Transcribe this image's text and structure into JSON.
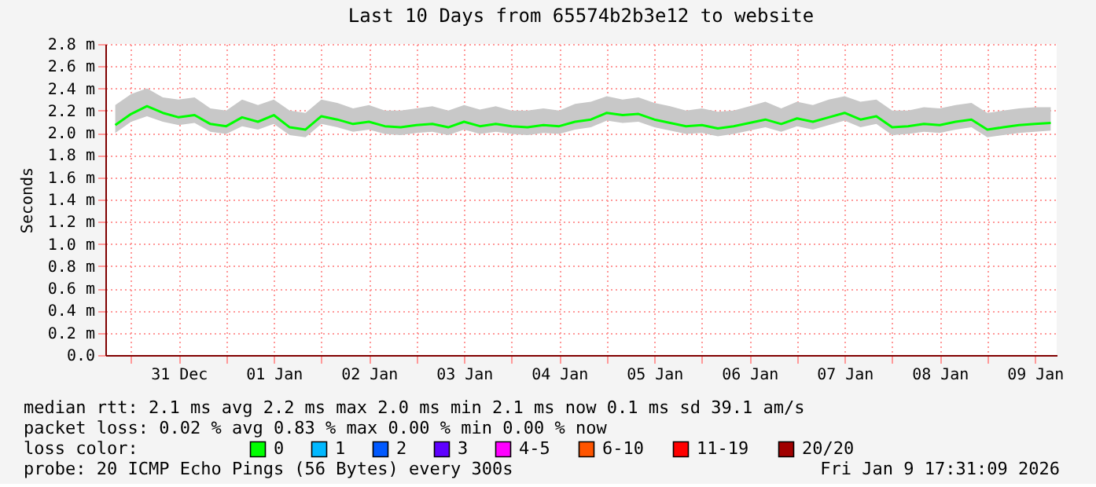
{
  "chart_data": {
    "type": "line",
    "title": "Last 10 Days from 65574b2b3e12 to website",
    "ylabel": "Seconds",
    "x": [
      "2025-12-30T20:00",
      "2025-12-31T00:00",
      "2025-12-31T04:00",
      "2025-12-31T08:00",
      "2025-12-31T12:00",
      "2025-12-31T16:00",
      "2025-12-31T20:00",
      "2026-01-01T00:00",
      "2026-01-01T04:00",
      "2026-01-01T08:00",
      "2026-01-01T12:00",
      "2026-01-01T16:00",
      "2026-01-01T20:00",
      "2026-01-02T00:00",
      "2026-01-02T04:00",
      "2026-01-02T08:00",
      "2026-01-02T12:00",
      "2026-01-02T16:00",
      "2026-01-02T20:00",
      "2026-01-03T00:00",
      "2026-01-03T04:00",
      "2026-01-03T08:00",
      "2026-01-03T12:00",
      "2026-01-03T16:00",
      "2026-01-03T20:00",
      "2026-01-04T00:00",
      "2026-01-04T04:00",
      "2026-01-04T08:00",
      "2026-01-04T12:00",
      "2026-01-04T16:00",
      "2026-01-04T20:00",
      "2026-01-05T00:00",
      "2026-01-05T04:00",
      "2026-01-05T08:00",
      "2026-01-05T12:00",
      "2026-01-05T16:00",
      "2026-01-05T20:00",
      "2026-01-06T00:00",
      "2026-01-06T04:00",
      "2026-01-06T08:00",
      "2026-01-06T12:00",
      "2026-01-06T16:00",
      "2026-01-06T20:00",
      "2026-01-07T00:00",
      "2026-01-07T04:00",
      "2026-01-07T08:00",
      "2026-01-07T12:00",
      "2026-01-07T16:00",
      "2026-01-07T20:00",
      "2026-01-08T00:00",
      "2026-01-08T04:00",
      "2026-01-08T08:00",
      "2026-01-08T12:00",
      "2026-01-08T16:00",
      "2026-01-08T20:00",
      "2026-01-09T00:00",
      "2026-01-09T04:00",
      "2026-01-09T08:00",
      "2026-01-09T12:00",
      "2026-01-09T16:00"
    ],
    "series": [
      {
        "name": "0",
        "color": "#00ff00",
        "values": [
          2.07,
          2.17,
          2.24,
          2.18,
          2.14,
          2.16,
          2.08,
          2.06,
          2.14,
          2.1,
          2.16,
          2.05,
          2.03,
          2.15,
          2.12,
          2.08,
          2.1,
          2.06,
          2.05,
          2.07,
          2.08,
          2.05,
          2.1,
          2.06,
          2.08,
          2.06,
          2.05,
          2.07,
          2.06,
          2.1,
          2.12,
          2.18,
          2.16,
          2.17,
          2.12,
          2.09,
          2.06,
          2.07,
          2.04,
          2.06,
          2.09,
          2.12,
          2.08,
          2.13,
          2.1,
          2.14,
          2.18,
          2.12,
          2.15,
          2.05,
          2.06,
          2.08,
          2.07,
          2.1,
          2.12,
          2.03,
          2.05,
          2.07,
          2.08,
          2.09
        ],
        "lower": [
          2.0,
          2.1,
          2.15,
          2.1,
          2.07,
          2.09,
          2.01,
          1.99,
          2.06,
          2.03,
          2.08,
          1.98,
          1.96,
          2.08,
          2.05,
          2.01,
          2.03,
          1.99,
          1.98,
          2.0,
          2.01,
          1.98,
          2.03,
          1.99,
          2.01,
          1.99,
          1.98,
          2.0,
          1.99,
          2.03,
          2.05,
          2.11,
          2.09,
          2.1,
          2.05,
          2.02,
          1.99,
          2.0,
          1.97,
          1.99,
          2.02,
          2.05,
          2.01,
          2.06,
          2.03,
          2.07,
          2.11,
          2.05,
          2.08,
          1.98,
          1.99,
          2.01,
          2.0,
          2.03,
          2.05,
          1.96,
          1.98,
          2.0,
          2.01,
          2.02
        ],
        "upper": [
          2.25,
          2.35,
          2.4,
          2.32,
          2.3,
          2.32,
          2.22,
          2.2,
          2.3,
          2.25,
          2.3,
          2.2,
          2.18,
          2.3,
          2.27,
          2.22,
          2.25,
          2.2,
          2.2,
          2.22,
          2.24,
          2.2,
          2.25,
          2.21,
          2.24,
          2.2,
          2.2,
          2.22,
          2.2,
          2.26,
          2.28,
          2.33,
          2.3,
          2.32,
          2.27,
          2.24,
          2.2,
          2.22,
          2.19,
          2.2,
          2.24,
          2.28,
          2.22,
          2.28,
          2.25,
          2.3,
          2.33,
          2.28,
          2.3,
          2.2,
          2.2,
          2.23,
          2.22,
          2.25,
          2.27,
          2.18,
          2.2,
          2.22,
          2.23,
          2.23
        ]
      },
      {
        "name": "1",
        "color": "#00b8ff",
        "values": [
          null,
          null,
          null,
          null,
          null,
          null,
          null,
          null,
          null,
          null,
          null,
          null,
          null,
          null,
          null,
          null,
          null,
          null,
          null,
          null,
          null,
          null,
          null,
          null,
          null,
          null,
          null,
          null,
          null,
          null,
          null,
          null,
          null,
          null,
          null,
          null,
          null,
          null,
          null,
          null,
          null,
          null,
          null,
          null,
          null,
          null,
          null,
          null,
          null,
          null,
          null,
          null,
          null,
          null,
          null,
          null,
          null,
          null,
          null,
          null
        ]
      },
      {
        "name": "2",
        "color": "#0059ff",
        "values": [
          null,
          null,
          null,
          null,
          null,
          null,
          null,
          null,
          null,
          null,
          null,
          null,
          null,
          null,
          null,
          null,
          null,
          null,
          null,
          null,
          null,
          null,
          null,
          null,
          null,
          null,
          null,
          null,
          null,
          null,
          null,
          null,
          null,
          null,
          null,
          null,
          null,
          null,
          null,
          null,
          null,
          null,
          null,
          null,
          null,
          null,
          null,
          null,
          null,
          null,
          null,
          null,
          null,
          null,
          null,
          null,
          null,
          null,
          null,
          null
        ]
      },
      {
        "name": "3",
        "color": "#5e00ff",
        "values": [
          null,
          null,
          null,
          null,
          null,
          null,
          null,
          null,
          null,
          null,
          null,
          null,
          null,
          null,
          null,
          null,
          null,
          null,
          null,
          null,
          null,
          null,
          null,
          null,
          null,
          null,
          null,
          null,
          null,
          null,
          null,
          null,
          null,
          null,
          null,
          null,
          null,
          null,
          null,
          null,
          null,
          null,
          null,
          null,
          null,
          null,
          null,
          null,
          null,
          null,
          null,
          null,
          null,
          null,
          null,
          null,
          null,
          null,
          null,
          null
        ]
      },
      {
        "name": "4-5",
        "color": "#ff00ff",
        "values": [
          null,
          null,
          null,
          null,
          null,
          null,
          null,
          null,
          null,
          null,
          null,
          null,
          null,
          null,
          null,
          null,
          null,
          null,
          null,
          null,
          null,
          null,
          null,
          null,
          null,
          null,
          null,
          null,
          null,
          null,
          null,
          null,
          null,
          null,
          null,
          null,
          null,
          null,
          null,
          null,
          null,
          null,
          null,
          null,
          null,
          null,
          null,
          null,
          null,
          null,
          null,
          null,
          null,
          null,
          null,
          null,
          null,
          null,
          null,
          null
        ]
      },
      {
        "name": "6-10",
        "color": "#ff5500",
        "values": [
          null,
          null,
          null,
          null,
          null,
          null,
          null,
          null,
          null,
          null,
          null,
          null,
          null,
          null,
          null,
          null,
          null,
          null,
          null,
          null,
          null,
          null,
          null,
          null,
          null,
          null,
          null,
          null,
          null,
          null,
          null,
          null,
          null,
          null,
          null,
          null,
          null,
          null,
          null,
          null,
          null,
          null,
          null,
          null,
          null,
          null,
          null,
          null,
          null,
          null,
          null,
          null,
          null,
          null,
          null,
          null,
          null,
          null,
          null,
          null
        ]
      },
      {
        "name": "11-19",
        "color": "#ff0000",
        "values": [
          null,
          null,
          null,
          null,
          null,
          null,
          null,
          null,
          null,
          null,
          null,
          null,
          null,
          null,
          null,
          null,
          null,
          null,
          null,
          null,
          null,
          null,
          null,
          null,
          null,
          null,
          null,
          null,
          null,
          null,
          null,
          null,
          null,
          null,
          null,
          null,
          null,
          null,
          null,
          null,
          null,
          null,
          null,
          null,
          null,
          null,
          null,
          null,
          null,
          null,
          null,
          null,
          null,
          null,
          null,
          null,
          null,
          null,
          null,
          null
        ]
      },
      {
        "name": "20/20",
        "color": "#a10000",
        "values": [
          null,
          null,
          null,
          null,
          null,
          null,
          null,
          null,
          null,
          null,
          null,
          null,
          null,
          null,
          null,
          null,
          null,
          null,
          null,
          null,
          null,
          null,
          null,
          null,
          null,
          null,
          null,
          null,
          null,
          null,
          null,
          null,
          null,
          null,
          null,
          null,
          null,
          null,
          null,
          null,
          null,
          null,
          null,
          null,
          null,
          null,
          null,
          null,
          null,
          null,
          null,
          null,
          null,
          null,
          null,
          null,
          null,
          null,
          null,
          null
        ]
      }
    ],
    "legend_title": "loss color:",
    "legend": "bottom",
    "marker": "none",
    "line_style": "solid",
    "grid": true,
    "xlim": [
      "2025-12-30T17:30",
      "2026-01-09T17:30"
    ],
    "xticks": [
      {
        "value": "2025-12-31T00:00",
        "label": null
      },
      {
        "value": "2025-12-31T12:00",
        "label": "31 Dec"
      },
      {
        "value": "2026-01-01T00:00",
        "label": null
      },
      {
        "value": "2026-01-01T12:00",
        "label": "01 Jan"
      },
      {
        "value": "2026-01-02T00:00",
        "label": null
      },
      {
        "value": "2026-01-02T12:00",
        "label": "02 Jan"
      },
      {
        "value": "2026-01-03T00:00",
        "label": null
      },
      {
        "value": "2026-01-03T12:00",
        "label": "03 Jan"
      },
      {
        "value": "2026-01-04T00:00",
        "label": null
      },
      {
        "value": "2026-01-04T12:00",
        "label": "04 Jan"
      },
      {
        "value": "2026-01-05T00:00",
        "label": null
      },
      {
        "value": "2026-01-05T12:00",
        "label": "05 Jan"
      },
      {
        "value": "2026-01-06T00:00",
        "label": null
      },
      {
        "value": "2026-01-06T12:00",
        "label": "06 Jan"
      },
      {
        "value": "2026-01-07T00:00",
        "label": null
      },
      {
        "value": "2026-01-07T12:00",
        "label": "07 Jan"
      },
      {
        "value": "2026-01-08T00:00",
        "label": null
      },
      {
        "value": "2026-01-08T12:00",
        "label": "08 Jan"
      },
      {
        "value": "2026-01-09T00:00",
        "label": null
      },
      {
        "value": "2026-01-09T12:00",
        "label": "09 Jan"
      }
    ],
    "ylim": [
      0,
      2.8
    ],
    "yticks": [
      {
        "value": 0,
        "label": "0.0"
      },
      {
        "value": 0.2,
        "label": "0.2 m"
      },
      {
        "value": 0.4,
        "label": "0.4 m"
      },
      {
        "value": 0.6,
        "label": "0.6 m"
      },
      {
        "value": 0.8,
        "label": "0.8 m"
      },
      {
        "value": 1.0,
        "label": "1.0 m"
      },
      {
        "value": 1.2,
        "label": "1.2 m"
      },
      {
        "value": 1.4,
        "label": "1.4 m"
      },
      {
        "value": 1.6,
        "label": "1.6 m"
      },
      {
        "value": 1.8,
        "label": "1.8 m"
      },
      {
        "value": 2.0,
        "label": "2.0 m"
      },
      {
        "value": 2.2,
        "label": "2.2 m"
      },
      {
        "value": 2.4,
        "label": "2.4 m"
      },
      {
        "value": 2.6,
        "label": "2.6 m"
      },
      {
        "value": 2.8,
        "label": "2.8 m"
      }
    ],
    "annotations": [
      "median rtt:  2.1 ms avg  2.2 ms max  2.0 ms min  2.1 ms now  0.1 ms sd  39.1   am/s",
      "packet loss: 0.02 % avg  0.83 % max  0.00 % min  0.00 % now",
      "probe:       20 ICMP Echo Pings (56 Bytes) every 300s",
      "Fri Jan  9 17:31:09 2026"
    ]
  }
}
